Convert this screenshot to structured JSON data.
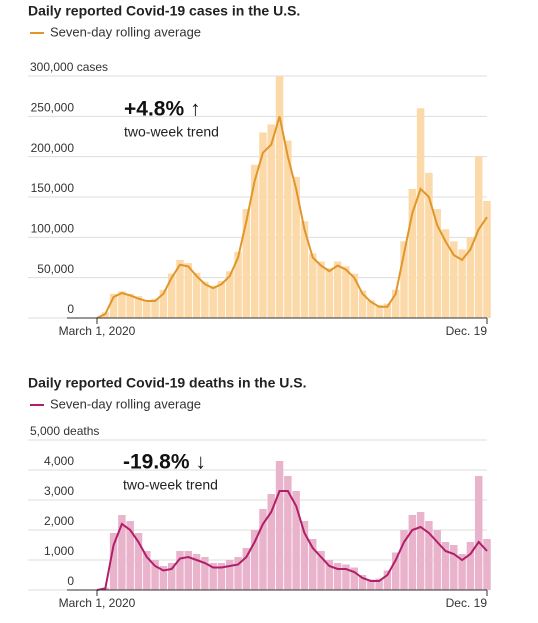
{
  "chart_data": [
    {
      "type": "bar-line",
      "title": "Daily reported Covid-19 cases in the U.S.",
      "annotation": {
        "value": "+4.8% ↑",
        "note": "two-week trend"
      },
      "categories": [
        "March 1, 2020",
        null,
        null,
        null,
        null,
        null,
        null,
        null,
        null,
        null,
        null,
        null,
        null,
        null,
        null,
        null,
        null,
        null,
        null,
        null,
        null,
        null,
        null,
        null,
        null,
        null,
        null,
        null,
        null,
        null,
        null,
        null,
        null,
        null,
        null,
        null,
        null,
        null,
        null,
        null,
        null,
        null,
        null,
        null,
        null,
        null,
        null,
        "Dec. 19"
      ],
      "bars": {
        "color": "#fbd9a8",
        "values": [
          0,
          7000,
          30000,
          33000,
          30000,
          27000,
          22000,
          24000,
          35000,
          55000,
          72000,
          68000,
          56000,
          45000,
          40000,
          46000,
          58000,
          82000,
          135000,
          190000,
          230000,
          240000,
          300000,
          220000,
          175000,
          120000,
          80000,
          70000,
          62000,
          70000,
          64000,
          55000,
          34000,
          22000,
          16000,
          18000,
          35000,
          95000,
          160000,
          260000,
          180000,
          135000,
          110000,
          95000,
          85000,
          100000,
          200000,
          145000
        ]
      },
      "series": [
        {
          "name": "Seven-day rolling average",
          "color": "#e0962b",
          "values": [
            0,
            5000,
            26000,
            31000,
            28000,
            24000,
            21000,
            21000,
            30000,
            50000,
            66000,
            64000,
            52000,
            42000,
            37000,
            42000,
            52000,
            75000,
            120000,
            170000,
            205000,
            215000,
            250000,
            200000,
            160000,
            110000,
            75000,
            65000,
            58000,
            65000,
            60000,
            50000,
            30000,
            20000,
            14000,
            14000,
            30000,
            80000,
            130000,
            160000,
            150000,
            115000,
            95000,
            78000,
            72000,
            85000,
            110000,
            125000
          ]
        }
      ],
      "ylim": [
        0,
        300000
      ],
      "yticks": [
        0,
        {
          "value": 50000,
          "label": "50,000"
        },
        {
          "value": 100000,
          "label": "100,000"
        },
        {
          "value": 150000,
          "label": "150,000"
        },
        {
          "value": 200000,
          "label": "200,000"
        },
        {
          "value": 250000,
          "label": "250,000"
        },
        {
          "value": 300000,
          "label": "300,000 cases"
        }
      ],
      "grid": true
    },
    {
      "type": "bar-line",
      "title": "Daily reported Covid-19 deaths in the U.S.",
      "annotation": {
        "value": "-19.8% ↓",
        "note": "two-week trend"
      },
      "categories": [
        "March 1, 2020",
        null,
        null,
        null,
        null,
        null,
        null,
        null,
        null,
        null,
        null,
        null,
        null,
        null,
        null,
        null,
        null,
        null,
        null,
        null,
        null,
        null,
        null,
        null,
        null,
        null,
        null,
        null,
        null,
        null,
        null,
        null,
        null,
        null,
        null,
        null,
        null,
        null,
        null,
        null,
        null,
        null,
        null,
        null,
        null,
        null,
        null,
        "Dec. 19"
      ],
      "bars": {
        "color": "#e9b3cb",
        "values": [
          0,
          80,
          1900,
          2500,
          2300,
          1900,
          1300,
          1000,
          800,
          900,
          1300,
          1300,
          1200,
          1100,
          900,
          900,
          1000,
          1100,
          1400,
          2000,
          2700,
          3200,
          4300,
          3800,
          3300,
          2300,
          1700,
          1300,
          1000,
          900,
          850,
          750,
          500,
          350,
          380,
          650,
          1250,
          2000,
          2500,
          2600,
          2300,
          2000,
          1600,
          1500,
          1200,
          1600,
          3800,
          1700
        ]
      },
      "series": [
        {
          "name": "Seven-day rolling average",
          "color": "#b0206a",
          "values": [
            0,
            50,
            1500,
            2200,
            2000,
            1600,
            1100,
            800,
            650,
            700,
            1050,
            1100,
            1000,
            900,
            750,
            750,
            800,
            850,
            1100,
            1600,
            2200,
            2600,
            3300,
            3300,
            2800,
            1900,
            1400,
            1100,
            800,
            700,
            700,
            600,
            400,
            300,
            300,
            500,
            1000,
            1600,
            2000,
            2100,
            1900,
            1600,
            1300,
            1200,
            1000,
            1200,
            1600,
            1300
          ]
        }
      ],
      "ylim": [
        0,
        5000
      ],
      "yticks": [
        0,
        {
          "value": 1000,
          "label": "1,000"
        },
        {
          "value": 2000,
          "label": "2,000"
        },
        {
          "value": 3000,
          "label": "3,000"
        },
        {
          "value": 4000,
          "label": "4,000"
        },
        {
          "value": 5000,
          "label": "5,000 deaths"
        }
      ],
      "grid": true
    }
  ]
}
